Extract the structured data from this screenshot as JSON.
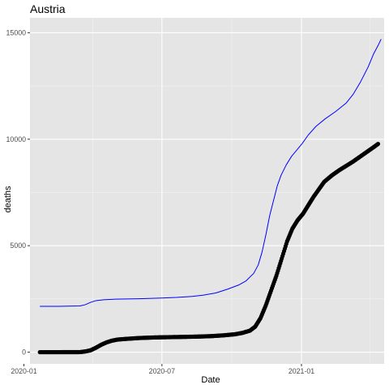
{
  "chart_data": {
    "type": "scatter",
    "title": "Austria",
    "xlabel": "Date",
    "ylabel": "deaths",
    "x_axis_type": "date",
    "xlim": [
      "2020-01-09",
      "2021-04-20"
    ],
    "ylim": [
      -550,
      15700
    ],
    "grid": true,
    "legend": "none",
    "panel_background": "#e5e5e5",
    "x_ticks": [
      {
        "value": "2020-01-01",
        "label": "2020-01"
      },
      {
        "value": "2020-07-01",
        "label": "2020-07"
      },
      {
        "value": "2021-01-01",
        "label": "2021-01"
      }
    ],
    "x_minor_ticks": [
      "2020-04-01",
      "2020-10-01",
      "2021-04-01"
    ],
    "y_ticks": [
      0,
      5000,
      10000,
      15000
    ],
    "y_minor_ticks": [
      2500,
      7500,
      12500
    ],
    "series": [
      {
        "kind": "points",
        "color": "#000000",
        "data": [
          [
            "2020-01-22",
            0
          ],
          [
            "2020-02-15",
            0
          ],
          [
            "2020-03-15",
            3
          ],
          [
            "2020-03-22",
            35
          ],
          [
            "2020-03-29",
            90
          ],
          [
            "2020-04-05",
            210
          ],
          [
            "2020-04-12",
            350
          ],
          [
            "2020-04-19",
            460
          ],
          [
            "2020-04-26",
            540
          ],
          [
            "2020-05-03",
            590
          ],
          [
            "2020-05-15",
            625
          ],
          [
            "2020-06-01",
            665
          ],
          [
            "2020-06-20",
            690
          ],
          [
            "2020-07-10",
            705
          ],
          [
            "2020-08-01",
            720
          ],
          [
            "2020-08-20",
            735
          ],
          [
            "2020-09-05",
            755
          ],
          [
            "2020-09-20",
            790
          ],
          [
            "2020-10-05",
            840
          ],
          [
            "2020-10-15",
            905
          ],
          [
            "2020-10-25",
            1010
          ],
          [
            "2020-11-01",
            1200
          ],
          [
            "2020-11-08",
            1600
          ],
          [
            "2020-11-15",
            2200
          ],
          [
            "2020-11-22",
            2900
          ],
          [
            "2020-11-29",
            3600
          ],
          [
            "2020-12-06",
            4400
          ],
          [
            "2020-12-13",
            5200
          ],
          [
            "2020-12-20",
            5800
          ],
          [
            "2020-12-27",
            6200
          ],
          [
            "2021-01-03",
            6500
          ],
          [
            "2021-01-10",
            6900
          ],
          [
            "2021-01-17",
            7300
          ],
          [
            "2021-01-24",
            7650
          ],
          [
            "2021-01-31",
            8000
          ],
          [
            "2021-02-10",
            8300
          ],
          [
            "2021-02-20",
            8550
          ],
          [
            "2021-03-01",
            8750
          ],
          [
            "2021-03-10",
            8950
          ],
          [
            "2021-03-20",
            9200
          ],
          [
            "2021-03-30",
            9450
          ],
          [
            "2021-04-07",
            9650
          ],
          [
            "2021-04-12",
            9780
          ]
        ]
      },
      {
        "kind": "line",
        "color": "#0000ff",
        "data": [
          [
            "2020-01-22",
            2150
          ],
          [
            "2020-02-15",
            2150
          ],
          [
            "2020-03-15",
            2170
          ],
          [
            "2020-03-22",
            2230
          ],
          [
            "2020-03-29",
            2340
          ],
          [
            "2020-04-05",
            2420
          ],
          [
            "2020-04-15",
            2460
          ],
          [
            "2020-05-01",
            2490
          ],
          [
            "2020-06-01",
            2510
          ],
          [
            "2020-07-01",
            2540
          ],
          [
            "2020-07-20",
            2570
          ],
          [
            "2020-08-10",
            2620
          ],
          [
            "2020-08-25",
            2680
          ],
          [
            "2020-09-10",
            2780
          ],
          [
            "2020-09-25",
            2950
          ],
          [
            "2020-10-10",
            3150
          ],
          [
            "2020-10-20",
            3350
          ],
          [
            "2020-10-30",
            3700
          ],
          [
            "2020-11-05",
            4100
          ],
          [
            "2020-11-10",
            4700
          ],
          [
            "2020-11-15",
            5500
          ],
          [
            "2020-11-20",
            6400
          ],
          [
            "2020-11-25",
            7100
          ],
          [
            "2020-11-30",
            7800
          ],
          [
            "2020-12-05",
            8300
          ],
          [
            "2020-12-12",
            8800
          ],
          [
            "2020-12-19",
            9200
          ],
          [
            "2020-12-26",
            9500
          ],
          [
            "2021-01-02",
            9800
          ],
          [
            "2021-01-10",
            10200
          ],
          [
            "2021-01-20",
            10600
          ],
          [
            "2021-02-01",
            10950
          ],
          [
            "2021-02-15",
            11300
          ],
          [
            "2021-03-01",
            11700
          ],
          [
            "2021-03-10",
            12100
          ],
          [
            "2021-03-20",
            12700
          ],
          [
            "2021-03-30",
            13400
          ],
          [
            "2021-04-06",
            14000
          ],
          [
            "2021-04-12",
            14400
          ],
          [
            "2021-04-16",
            14700
          ]
        ]
      }
    ]
  }
}
